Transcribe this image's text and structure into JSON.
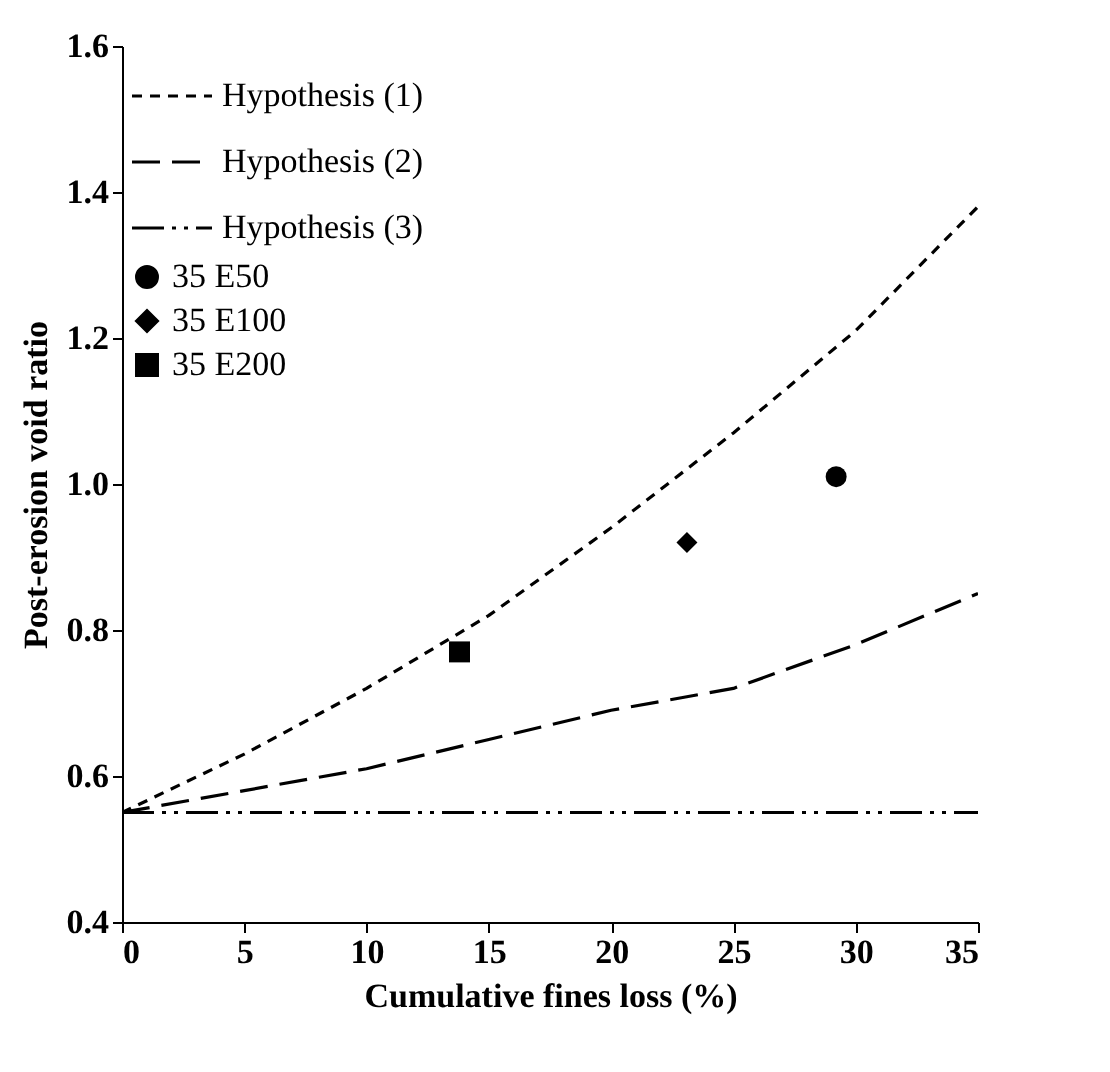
{
  "chart_data": {
    "type": "line",
    "xlabel": "Cumulative fines loss (%)",
    "ylabel": "Post-erosion void ratio",
    "xlim": [
      0,
      35
    ],
    "xticks": [
      0,
      5,
      10,
      15,
      20,
      25,
      30,
      35
    ],
    "ylim": [
      0.4,
      1.6
    ],
    "yticks": [
      0.4,
      0.6,
      0.8,
      {
        "value": 1,
        "label": "1.0"
      },
      1.2,
      1.4,
      1.6
    ],
    "legend": "top left",
    "grid": false,
    "series": [
      {
        "name": "Hypothesis (1)",
        "type": "line",
        "line_style": "dotted",
        "color": "#000000",
        "x": [
          0,
          5,
          10,
          15,
          20,
          25,
          30,
          35
        ],
        "values": [
          0.55,
          0.63,
          0.72,
          0.82,
          0.94,
          1.07,
          1.21,
          1.38
        ]
      },
      {
        "name": "Hypothesis (2)",
        "type": "line",
        "line_style": "dashed",
        "color": "#000000",
        "x": [
          0,
          5,
          10,
          15,
          20,
          25,
          30,
          35
        ],
        "values": [
          0.55,
          0.58,
          0.61,
          0.65,
          0.69,
          0.72,
          0.78,
          0.85
        ]
      },
      {
        "name": "Hypothesis (3)",
        "type": "line",
        "line_style": "dashdot",
        "color": "#000000",
        "x": [
          0,
          35
        ],
        "values": [
          0.55,
          0.55
        ]
      },
      {
        "name": "35 E50",
        "type": "scatter",
        "marker": "circle",
        "color": "#000000",
        "x": [
          29.2
        ],
        "values": [
          1.01
        ]
      },
      {
        "name": "35 E100",
        "type": "scatter",
        "marker": "diamond",
        "color": "#000000",
        "x": [
          23.1
        ],
        "values": [
          0.92
        ]
      },
      {
        "name": "35 E200",
        "type": "scatter",
        "marker": "square",
        "color": "#000000",
        "x": [
          13.8
        ],
        "values": [
          0.77
        ]
      }
    ]
  }
}
